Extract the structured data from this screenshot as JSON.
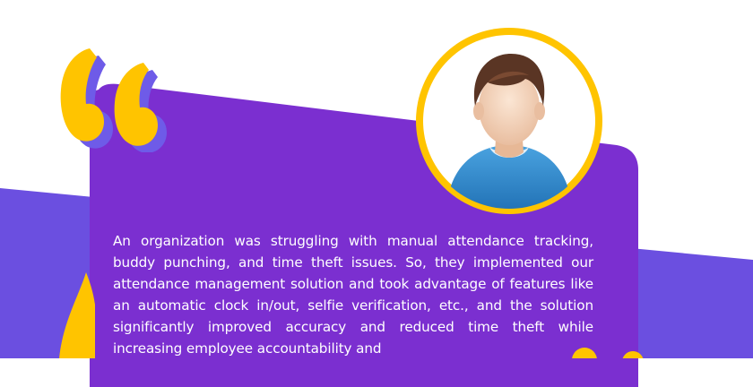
{
  "testimonial": {
    "story": "An organization was struggling with manual attendance tracking, buddy punching, and time theft issues. So, they implemented our attendance management solution and took advantage of features like an automatic clock in/out, selfie verification, etc., and the solution significantly improved accuracy and reduced time theft while increasing employee accountability and"
  },
  "colors": {
    "card": "#7B2FD0",
    "band": "#6B4FE0",
    "accent": "#FFC400",
    "quote_shadow": "#6E5BE8",
    "text": "#FFFFFF"
  },
  "icons": {
    "quote": "quote-icon",
    "avatar": "user-avatar-icon"
  }
}
